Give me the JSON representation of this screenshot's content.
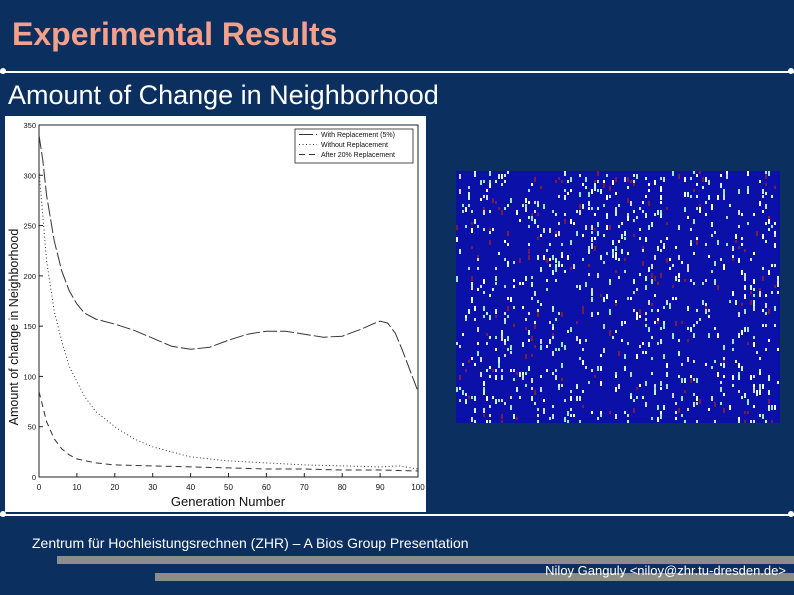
{
  "slide": {
    "title": "Experimental Results",
    "subtitle": "Amount of Change in Neighborhood",
    "footer": "Zentrum für Hochleistungsrechnen  (ZHR) – A Bios Group Presentation",
    "author": "Niloy Ganguly <niloy@zhr.tu-dresden.de>"
  },
  "colors": {
    "background": "#0b2f5e",
    "title": "#f4a08a",
    "text": "#ffffff",
    "footer_bar": "#8c8c8c"
  },
  "chart_data": {
    "type": "line",
    "title": "",
    "xlabel": "Generation Number",
    "ylabel": "Amount of change in Neighborhood",
    "xlim": [
      0,
      100
    ],
    "ylim": [
      0,
      350
    ],
    "xticks": [
      0,
      10,
      20,
      30,
      40,
      50,
      60,
      70,
      80,
      90,
      100
    ],
    "xtick_labels": [
      "0",
      "10",
      "20",
      "30",
      "40",
      "50",
      "60",
      "70",
      "80",
      "90",
      "100"
    ],
    "yticks": [
      0,
      50,
      100,
      150,
      200,
      250,
      300,
      350
    ],
    "ytick_labels": [
      "0",
      "50",
      "100",
      "150",
      "200",
      "250",
      "300",
      "350"
    ],
    "legend_position": "top-right",
    "series": [
      {
        "name": "With Replacement (5%)",
        "dash": "long",
        "x": [
          0,
          1,
          2,
          4,
          6,
          8,
          10,
          12,
          15,
          20,
          25,
          30,
          35,
          40,
          45,
          50,
          55,
          60,
          65,
          70,
          75,
          80,
          85,
          88,
          90,
          92,
          94,
          96,
          98,
          100
        ],
        "y": [
          340,
          315,
          280,
          235,
          205,
          185,
          172,
          163,
          157,
          152,
          146,
          138,
          130,
          127,
          129,
          136,
          142,
          145,
          145,
          142,
          139,
          140,
          147,
          152,
          155,
          153,
          143,
          125,
          105,
          85
        ]
      },
      {
        "name": "Without Replacement",
        "dash": "dotted",
        "x": [
          0,
          1,
          2,
          4,
          6,
          8,
          10,
          12,
          15,
          20,
          25,
          30,
          35,
          40,
          45,
          50,
          60,
          70,
          80,
          90,
          95,
          100
        ],
        "y": [
          305,
          260,
          215,
          165,
          135,
          110,
          95,
          80,
          65,
          50,
          38,
          30,
          25,
          20,
          18,
          16,
          14,
          12,
          11,
          10,
          11,
          8
        ]
      },
      {
        "name": "After 20% Replacement",
        "dash": "dashed",
        "x": [
          0,
          1,
          2,
          4,
          6,
          8,
          10,
          15,
          20,
          30,
          40,
          50,
          60,
          70,
          80,
          90,
          100
        ],
        "y": [
          85,
          70,
          55,
          38,
          28,
          22,
          18,
          14,
          12,
          11,
          10,
          9,
          8,
          8,
          7,
          7,
          6
        ]
      }
    ]
  },
  "simulation_image": {
    "background": "#0a10a8",
    "dot_colors": [
      "#ffffff",
      "#9be7c4",
      "#d8d8ff",
      "#c7f5e0"
    ],
    "accent_color": "#7a1c4a"
  }
}
